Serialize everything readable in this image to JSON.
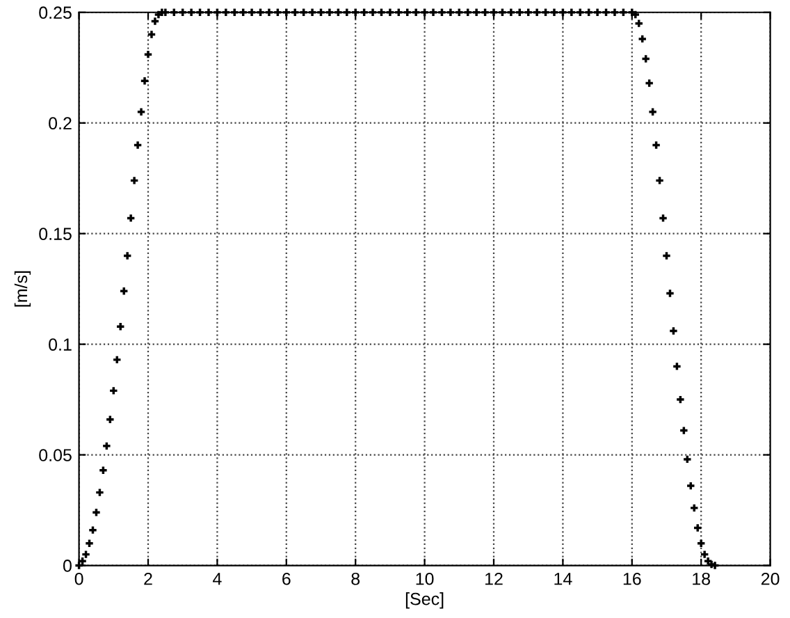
{
  "chart_data": {
    "type": "scatter",
    "xlabel": "[Sec]",
    "ylabel": "[m/s]",
    "x": [
      0,
      0.1,
      0.2,
      0.3,
      0.4,
      0.5,
      0.6,
      0.7,
      0.8,
      0.9,
      1.0,
      1.1,
      1.2,
      1.3,
      1.4,
      1.5,
      1.6,
      1.7,
      1.8,
      1.9,
      2.0,
      2.1,
      2.2,
      2.3,
      2.4,
      2.5,
      2.75,
      3.0,
      3.25,
      3.5,
      3.75,
      4.0,
      4.25,
      4.5,
      4.75,
      5.0,
      5.25,
      5.5,
      5.75,
      6.0,
      6.25,
      6.5,
      6.75,
      7.0,
      7.25,
      7.5,
      7.75,
      8.0,
      8.25,
      8.5,
      8.75,
      9.0,
      9.25,
      9.5,
      9.75,
      10.0,
      10.25,
      10.5,
      10.75,
      11.0,
      11.25,
      11.5,
      11.75,
      12.0,
      12.25,
      12.5,
      12.75,
      13.0,
      13.25,
      13.5,
      13.75,
      14.0,
      14.25,
      14.5,
      14.75,
      15.0,
      15.25,
      15.5,
      15.75,
      16.0,
      16.1,
      16.2,
      16.3,
      16.4,
      16.5,
      16.6,
      16.7,
      16.8,
      16.9,
      17.0,
      17.1,
      17.2,
      17.3,
      17.4,
      17.5,
      17.6,
      17.7,
      17.8,
      17.9,
      18.0,
      18.1,
      18.2,
      18.3,
      18.4
    ],
    "series": [
      {
        "color": "#000000",
        "values": [
          0,
          0.002,
          0.005,
          0.01,
          0.016,
          0.024,
          0.033,
          0.043,
          0.054,
          0.066,
          0.079,
          0.093,
          0.108,
          0.124,
          0.14,
          0.157,
          0.174,
          0.19,
          0.205,
          0.219,
          0.231,
          0.24,
          0.246,
          0.249,
          0.25,
          0.25,
          0.25,
          0.25,
          0.25,
          0.25,
          0.25,
          0.25,
          0.25,
          0.25,
          0.25,
          0.25,
          0.25,
          0.25,
          0.25,
          0.25,
          0.25,
          0.25,
          0.25,
          0.25,
          0.25,
          0.25,
          0.25,
          0.25,
          0.25,
          0.25,
          0.25,
          0.25,
          0.25,
          0.25,
          0.25,
          0.25,
          0.25,
          0.25,
          0.25,
          0.25,
          0.25,
          0.25,
          0.25,
          0.25,
          0.25,
          0.25,
          0.25,
          0.25,
          0.25,
          0.25,
          0.25,
          0.25,
          0.25,
          0.25,
          0.25,
          0.25,
          0.25,
          0.25,
          0.25,
          0.25,
          0.249,
          0.245,
          0.238,
          0.229,
          0.218,
          0.205,
          0.19,
          0.174,
          0.157,
          0.14,
          0.123,
          0.106,
          0.09,
          0.075,
          0.061,
          0.048,
          0.036,
          0.026,
          0.017,
          0.01,
          0.005,
          0.002,
          0.0005,
          0
        ]
      }
    ],
    "marker": "cross",
    "xlim": [
      0,
      20
    ],
    "ylim": [
      0,
      0.25
    ],
    "xticks": [
      0,
      2,
      4,
      6,
      8,
      10,
      12,
      14,
      16,
      18,
      20
    ],
    "yticks": [
      0,
      0.05,
      0.1,
      0.15,
      0.2,
      0.25
    ],
    "grid": true
  }
}
